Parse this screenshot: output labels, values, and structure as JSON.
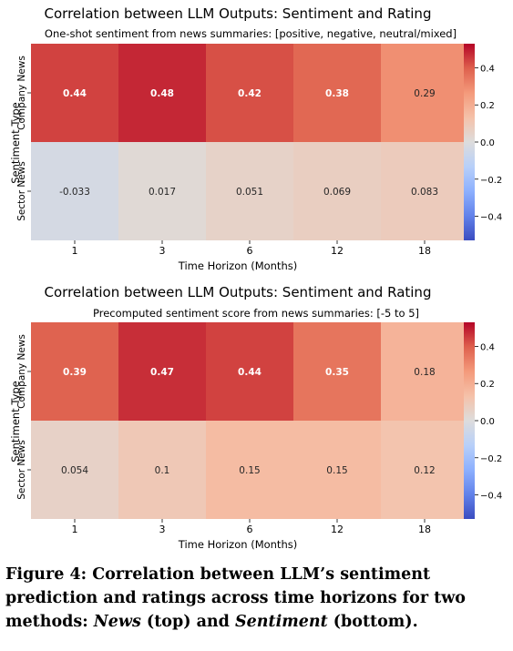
{
  "chart_data": [
    {
      "type": "heatmap",
      "title": "Correlation between LLM Outputs: Sentiment and Rating",
      "subtitle": "One-shot sentiment from news summaries: [positive, negative, neutral/mixed]",
      "xlabel": "Time Horizon (Months)",
      "ylabel": "Sentiment Type",
      "x_categories": [
        "1",
        "3",
        "6",
        "12",
        "18"
      ],
      "y_categories": [
        "Company News",
        "Sector News"
      ],
      "values": [
        [
          0.44,
          0.48,
          0.42,
          0.38,
          0.29
        ],
        [
          -0.033,
          0.017,
          0.051,
          0.069,
          0.083
        ]
      ],
      "value_labels": [
        [
          "0.44",
          "0.48",
          "0.42",
          "0.38",
          "0.29"
        ],
        [
          "-0.033",
          "0.017",
          "0.051",
          "0.069",
          "0.083"
        ]
      ],
      "colormap": "coolwarm",
      "vlim": [
        -0.53,
        0.53
      ],
      "colorbar_ticks": [
        0.4,
        0.2,
        0.0,
        -0.2,
        -0.4
      ],
      "colorbar_tick_labels": [
        "0.4",
        "0.2",
        "0.0",
        "−0.2",
        "−0.4"
      ]
    },
    {
      "type": "heatmap",
      "title": "Correlation between LLM Outputs: Sentiment and Rating",
      "subtitle": "Precomputed sentiment score from news summaries: [-5 to 5]",
      "xlabel": "Time Horizon (Months)",
      "ylabel": "Sentiment Type",
      "x_categories": [
        "1",
        "3",
        "6",
        "12",
        "18"
      ],
      "y_categories": [
        "Company News",
        "Sector News"
      ],
      "values": [
        [
          0.39,
          0.47,
          0.44,
          0.35,
          0.18
        ],
        [
          0.054,
          0.1,
          0.15,
          0.15,
          0.12
        ]
      ],
      "value_labels": [
        [
          "0.39",
          "0.47",
          "0.44",
          "0.35",
          "0.18"
        ],
        [
          "0.054",
          "0.1",
          "0.15",
          "0.15",
          "0.12"
        ]
      ],
      "colormap": "coolwarm",
      "vlim": [
        -0.53,
        0.53
      ],
      "colorbar_ticks": [
        0.4,
        0.2,
        0.0,
        -0.2,
        -0.4
      ],
      "colorbar_tick_labels": [
        "0.4",
        "0.2",
        "0.0",
        "−0.2",
        "−0.4"
      ]
    }
  ],
  "caption": {
    "prefix": "Figure 4: Correlation between LLM’s sentiment prediction and ratings across time horizons for two methods: ",
    "method_news": "News",
    "news_position": " (top) and ",
    "method_sentiment": "Sentiment",
    "sentiment_position": " (bottom)."
  }
}
